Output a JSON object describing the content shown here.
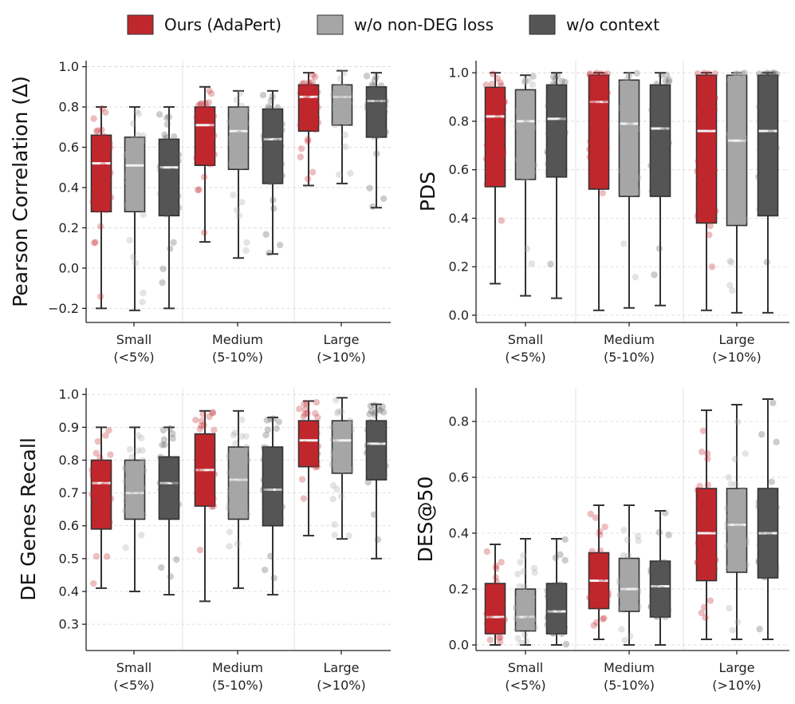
{
  "legend": [
    {
      "name": "Ours (AdaPert)",
      "color": "#c0272d"
    },
    {
      "name": "w/o non-DEG loss",
      "color": "#a6a6a6"
    },
    {
      "name": "w/o context",
      "color": "#555555"
    }
  ],
  "chart_data": [
    {
      "type": "box",
      "ylabel": "Pearson Correlation (Δ)",
      "ylim": [
        -0.27,
        1.03
      ],
      "yticks": [
        -0.2,
        0.0,
        0.2,
        0.4,
        0.6,
        0.8,
        1.0
      ],
      "ytick_labels": [
        "−0.2",
        "0.0",
        "0.2",
        "0.4",
        "0.6",
        "0.8",
        "1.0"
      ],
      "categories": [
        [
          "Small",
          "(<5%)"
        ],
        [
          "Medium",
          "(5-10%)"
        ],
        [
          "Large",
          "(>10%)"
        ]
      ],
      "series": [
        {
          "name": "Ours (AdaPert)",
          "boxes": [
            [
              -0.2,
              0.28,
              0.52,
              0.66,
              0.8
            ],
            [
              0.13,
              0.51,
              0.71,
              0.8,
              0.9
            ],
            [
              0.41,
              0.68,
              0.85,
              0.91,
              0.97
            ]
          ]
        },
        {
          "name": "w/o non-DEG loss",
          "boxes": [
            [
              -0.21,
              0.28,
              0.51,
              0.65,
              0.8
            ],
            [
              0.05,
              0.49,
              0.68,
              0.8,
              0.88
            ],
            [
              0.42,
              0.71,
              0.85,
              0.91,
              0.98
            ]
          ]
        },
        {
          "name": "w/o context",
          "boxes": [
            [
              -0.2,
              0.26,
              0.5,
              0.64,
              0.8
            ],
            [
              0.07,
              0.42,
              0.64,
              0.79,
              0.88
            ],
            [
              0.3,
              0.65,
              0.83,
              0.9,
              0.97
            ]
          ]
        }
      ]
    },
    {
      "type": "box",
      "ylabel": "PDS",
      "ylim": [
        -0.03,
        1.05
      ],
      "yticks": [
        0.0,
        0.2,
        0.4,
        0.6,
        0.8,
        1.0
      ],
      "ytick_labels": [
        "0.0",
        "0.2",
        "0.4",
        "0.6",
        "0.8",
        "1.0"
      ],
      "categories": [
        [
          "Small",
          "(<5%)"
        ],
        [
          "Medium",
          "(5-10%)"
        ],
        [
          "Large",
          "(>10%)"
        ]
      ],
      "series": [
        {
          "name": "Ours (AdaPert)",
          "boxes": [
            [
              0.13,
              0.53,
              0.82,
              0.94,
              1.0
            ],
            [
              0.02,
              0.52,
              0.88,
              0.99,
              1.0
            ],
            [
              0.02,
              0.38,
              0.76,
              0.99,
              1.0
            ]
          ]
        },
        {
          "name": "w/o non-DEG loss",
          "boxes": [
            [
              0.08,
              0.56,
              0.8,
              0.93,
              0.99
            ],
            [
              0.03,
              0.49,
              0.79,
              0.97,
              1.0
            ],
            [
              0.01,
              0.37,
              0.72,
              0.99,
              1.0
            ]
          ]
        },
        {
          "name": "w/o context",
          "boxes": [
            [
              0.07,
              0.57,
              0.81,
              0.95,
              1.0
            ],
            [
              0.04,
              0.49,
              0.77,
              0.95,
              1.0
            ],
            [
              0.01,
              0.41,
              0.76,
              0.99,
              1.0
            ]
          ]
        }
      ]
    },
    {
      "type": "box",
      "ylabel": "DE Genes Recall",
      "ylim": [
        0.22,
        1.02
      ],
      "yticks": [
        0.3,
        0.4,
        0.5,
        0.6,
        0.7,
        0.8,
        0.9,
        1.0
      ],
      "ytick_labels": [
        "0.3",
        "0.4",
        "0.5",
        "0.6",
        "0.7",
        "0.8",
        "0.9",
        "1.0"
      ],
      "categories": [
        [
          "Small",
          "(<5%)"
        ],
        [
          "Medium",
          "(5-10%)"
        ],
        [
          "Large",
          "(>10%)"
        ]
      ],
      "series": [
        {
          "name": "Ours (AdaPert)",
          "boxes": [
            [
              0.41,
              0.59,
              0.73,
              0.8,
              0.9
            ],
            [
              0.37,
              0.66,
              0.77,
              0.88,
              0.95
            ],
            [
              0.57,
              0.78,
              0.86,
              0.92,
              0.98
            ]
          ]
        },
        {
          "name": "w/o non-DEG loss",
          "boxes": [
            [
              0.4,
              0.62,
              0.7,
              0.8,
              0.9
            ],
            [
              0.41,
              0.62,
              0.74,
              0.84,
              0.95
            ],
            [
              0.56,
              0.76,
              0.86,
              0.92,
              0.99
            ]
          ]
        },
        {
          "name": "w/o context",
          "boxes": [
            [
              0.39,
              0.62,
              0.73,
              0.81,
              0.9
            ],
            [
              0.39,
              0.6,
              0.71,
              0.84,
              0.93
            ],
            [
              0.5,
              0.74,
              0.85,
              0.92,
              0.97
            ]
          ]
        }
      ]
    },
    {
      "type": "box",
      "ylabel": "DES@50",
      "ylim": [
        -0.02,
        0.92
      ],
      "yticks": [
        0.0,
        0.2,
        0.4,
        0.6,
        0.8
      ],
      "ytick_labels": [
        "0.0",
        "0.2",
        "0.4",
        "0.6",
        "0.8"
      ],
      "categories": [
        [
          "Small",
          "(<5%)"
        ],
        [
          "Medium",
          "(5-10%)"
        ],
        [
          "Large",
          "(>10%)"
        ]
      ],
      "series": [
        {
          "name": "Ours (AdaPert)",
          "boxes": [
            [
              0.0,
              0.04,
              0.1,
              0.22,
              0.36
            ],
            [
              0.02,
              0.13,
              0.23,
              0.33,
              0.5
            ],
            [
              0.02,
              0.23,
              0.4,
              0.56,
              0.84
            ]
          ]
        },
        {
          "name": "w/o non-DEG loss",
          "boxes": [
            [
              0.0,
              0.05,
              0.1,
              0.2,
              0.38
            ],
            [
              0.0,
              0.12,
              0.2,
              0.31,
              0.5
            ],
            [
              0.02,
              0.26,
              0.43,
              0.56,
              0.86
            ]
          ]
        },
        {
          "name": "w/o context",
          "boxes": [
            [
              0.0,
              0.04,
              0.12,
              0.22,
              0.38
            ],
            [
              0.0,
              0.1,
              0.21,
              0.3,
              0.48
            ],
            [
              0.02,
              0.24,
              0.4,
              0.56,
              0.88
            ]
          ]
        }
      ]
    }
  ]
}
